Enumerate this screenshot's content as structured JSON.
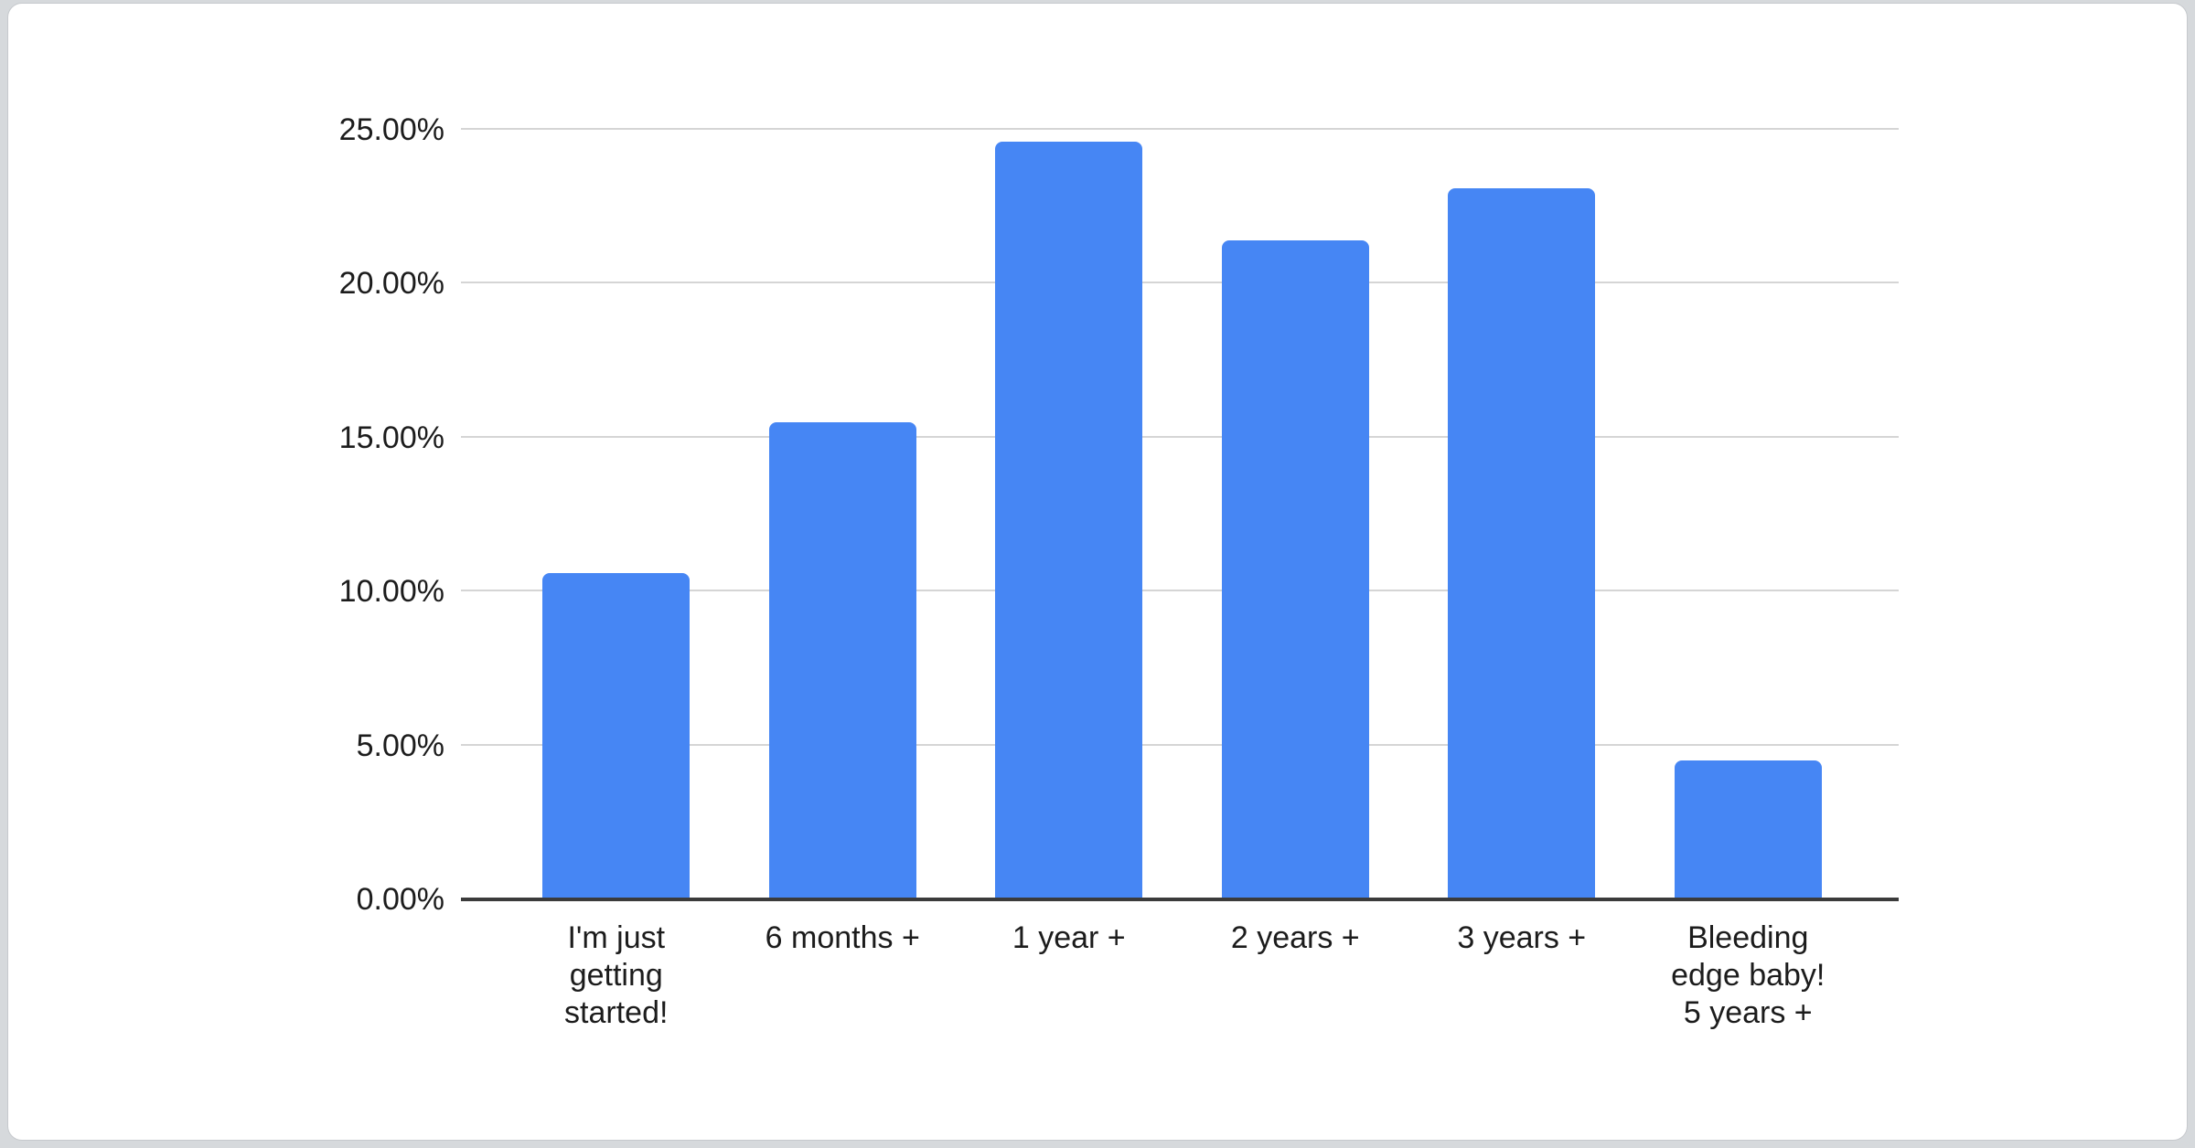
{
  "page": {
    "background_color": "#d6d9dc",
    "card_background": "#ffffff",
    "card_border_color": "#c6c9cd"
  },
  "chart_data": {
    "type": "bar",
    "title": "",
    "xlabel": "",
    "ylabel": "",
    "categories": [
      "I'm just getting started!",
      "6 months +",
      "1 year +",
      "2 years +",
      "3 years +",
      "Bleeding edge baby! 5 years +"
    ],
    "category_lines": [
      [
        "I'm just",
        "getting",
        "started!"
      ],
      [
        "6 months +"
      ],
      [
        "1 year +"
      ],
      [
        "2 years +"
      ],
      [
        "3 years +"
      ],
      [
        "Bleeding",
        "edge baby!",
        "5 years +"
      ]
    ],
    "values": [
      10.6,
      15.5,
      24.6,
      21.4,
      23.1,
      4.5
    ],
    "value_unit": "%",
    "ylim": [
      0,
      25
    ],
    "ytick_step": 5,
    "ytick_labels": [
      "0.00%",
      "5.00%",
      "10.00%",
      "15.00%",
      "20.00%",
      "25.00%"
    ],
    "grid": true,
    "legend": "none",
    "colors": {
      "bar": "#4686f4",
      "gridline": "#d5d5d5",
      "axis_line": "#3b3b3b",
      "label_text": "#1c1c1c"
    }
  }
}
